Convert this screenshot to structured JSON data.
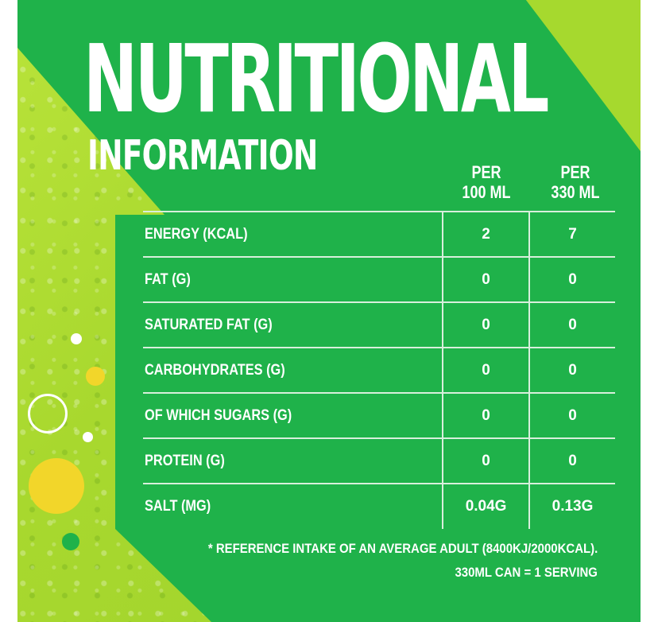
{
  "title": {
    "main": "NUTRITIONAL",
    "sub": "INFORMATION"
  },
  "columns": {
    "per100": [
      "PER",
      "100 ML"
    ],
    "per330": [
      "PER",
      "330 ML"
    ]
  },
  "rows": [
    {
      "label": "ENERGY (KCAL)",
      "per100": "2",
      "per330": "7"
    },
    {
      "label": "FAT (G)",
      "per100": "0",
      "per330": "0"
    },
    {
      "label": "SATURATED FAT (G)",
      "per100": "0",
      "per330": "0"
    },
    {
      "label": "CARBOHYDRATES (G)",
      "per100": "0",
      "per330": "0"
    },
    {
      "label": "OF WHICH SUGARS (G)",
      "per100": "0",
      "per330": "0"
    },
    {
      "label": "PROTEIN (G)",
      "per100": "0",
      "per330": "0"
    },
    {
      "label": "SALT (MG)",
      "per100": "0.04G",
      "per330": "0.13G"
    }
  ],
  "footnotes": {
    "reference": "* REFERENCE INTAKE OF AN AVERAGE ADULT (8400KJ/2000KCAL).",
    "serving": "330ML CAN = 1 SERVING"
  },
  "colors": {
    "lime": "#a8d82e",
    "green": "#1fb24a",
    "yellow": "#f2d62a",
    "text": "#ffffff"
  }
}
